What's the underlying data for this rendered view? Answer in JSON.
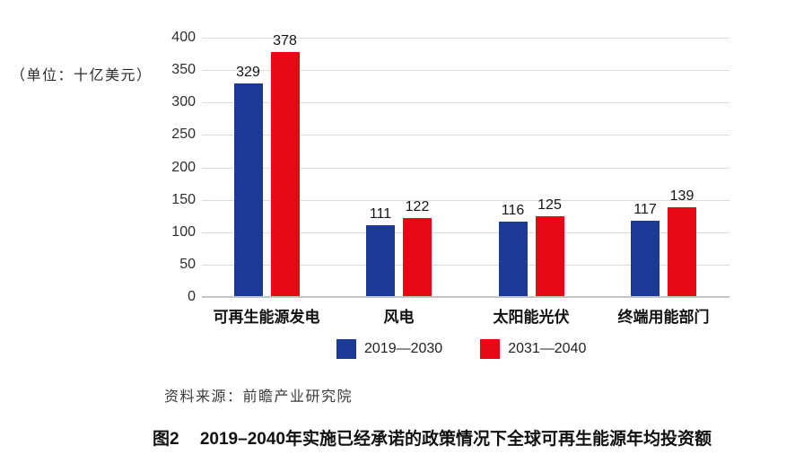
{
  "chart_data": {
    "type": "bar",
    "unit_label": "（单位：十亿美元）",
    "categories": [
      "可再生能源发电",
      "风电",
      "太阳能光伏",
      "终端用能部门"
    ],
    "series": [
      {
        "name": "2019—2030",
        "color": "#1B3A96",
        "values": [
          329,
          111,
          116,
          117
        ]
      },
      {
        "name": "2031—2040",
        "color": "#E60914",
        "values": [
          378,
          122,
          125,
          139
        ]
      }
    ],
    "ylim": [
      0,
      400
    ],
    "ytick_step": 50,
    "yticks": [
      0,
      50,
      100,
      150,
      200,
      250,
      300,
      350,
      400
    ],
    "grid": "horizontal",
    "legend_position": "bottom",
    "gridline_color": "#dcdcdc",
    "axis_line_color": "#c3c3c3",
    "value_labels_shown": true
  },
  "source": "资料来源：前瞻产业研究院",
  "caption": {
    "label": "图2",
    "text": "2019–2040年实施已经承诺的政策情况下全球可再生能源年均投资额"
  }
}
